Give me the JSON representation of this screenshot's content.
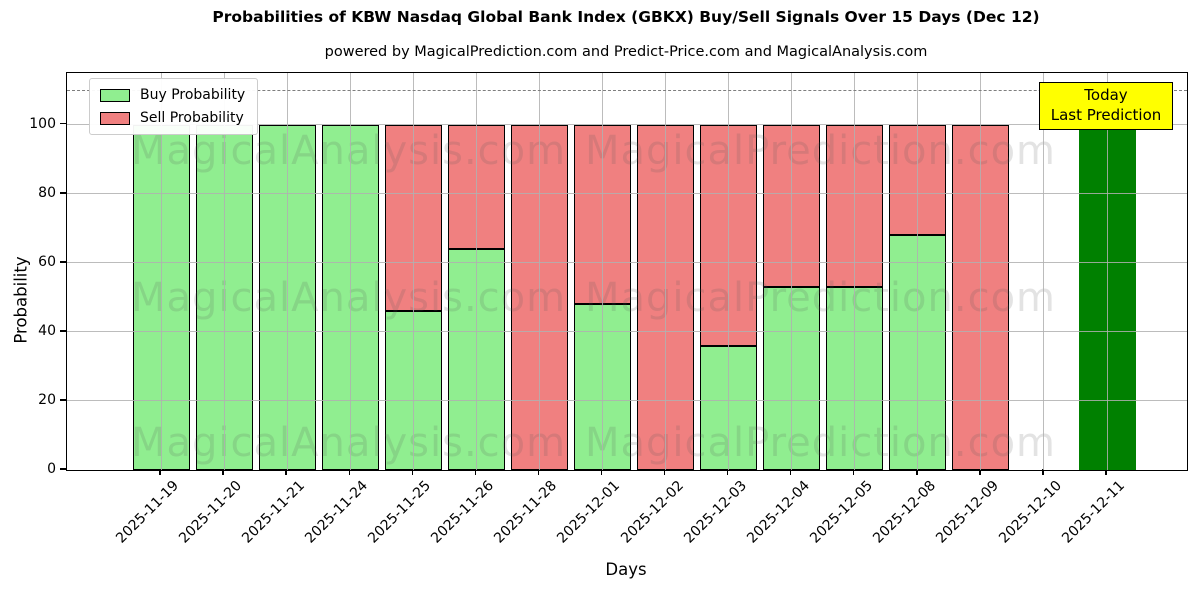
{
  "figure": {
    "title": "Probabilities of KBW Nasdaq Global Bank Index (GBKX) Buy/Sell Signals Over 15 Days (Dec 12)",
    "subtitle": "powered by MagicalPrediction.com and Predict-Price.com and MagicalAnalysis.com"
  },
  "legend": {
    "items": [
      {
        "label": "Buy Probability",
        "color": "#90EE90"
      },
      {
        "label": "Sell Probability",
        "color": "#F08080"
      }
    ]
  },
  "annotation": {
    "line1": "Today",
    "line2": "Last Prediction",
    "bg": "#FFFF00"
  },
  "axes": {
    "xlabel": "Days",
    "ylabel": "Probability",
    "yticks": [
      0,
      20,
      40,
      60,
      80,
      100
    ],
    "ylim": [
      0,
      115
    ],
    "dashed_line_y": 110
  },
  "watermarks": {
    "left": "MagicalAnalysis.com",
    "right": "MagicalPrediction.com",
    "rows": 3
  },
  "colors": {
    "buy": "#90EE90",
    "sell": "#F08080",
    "today": "#008000",
    "grid": "#b4b4b4",
    "dashed": "#7e7e7e",
    "bar_edge": "#000000",
    "annotation_bg": "#FFFF00"
  },
  "chart_data": {
    "type": "bar",
    "stacked": true,
    "title": "Probabilities of KBW Nasdaq Global Bank Index (GBKX) Buy/Sell Signals Over 15 Days (Dec 12)",
    "xlabel": "Days",
    "ylabel": "Probability",
    "ylim": [
      0,
      115
    ],
    "grid": true,
    "legend_position": "upper left",
    "dashed_line_y": 110,
    "categories": [
      "2025-11-19",
      "2025-11-20",
      "2025-11-21",
      "2025-11-24",
      "2025-11-25",
      "2025-11-26",
      "2025-11-28",
      "2025-12-01",
      "2025-12-02",
      "2025-12-03",
      "2025-12-04",
      "2025-12-05",
      "2025-12-08",
      "2025-12-09",
      "2025-12-10",
      "2025-12-11"
    ],
    "series": [
      {
        "name": "Buy Probability",
        "color": "#90EE90",
        "values": [
          100,
          100,
          100,
          100,
          46,
          64,
          0,
          48,
          0,
          36,
          53,
          53,
          68,
          0,
          null,
          100
        ]
      },
      {
        "name": "Sell Probability",
        "color": "#F08080",
        "values": [
          0,
          0,
          0,
          0,
          54,
          36,
          100,
          52,
          100,
          64,
          47,
          47,
          32,
          100,
          null,
          0
        ]
      }
    ],
    "today_bar": {
      "index": 15,
      "value": 100,
      "color": "#008000"
    },
    "missing_indices": [
      14
    ]
  }
}
